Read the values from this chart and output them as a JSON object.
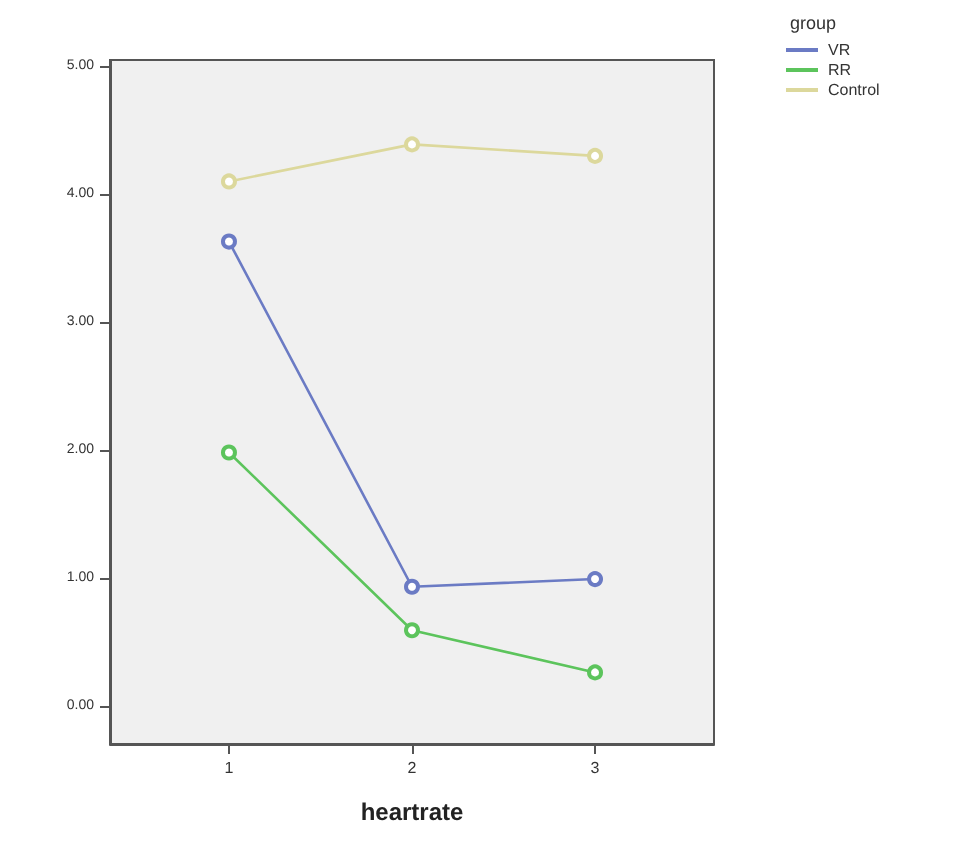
{
  "chart_data": {
    "type": "line",
    "xlabel": "heartrate",
    "legend_title": "group",
    "legend": "top right",
    "marker": "circle",
    "line_style": "solid",
    "grid": false,
    "x": [
      1,
      2,
      3
    ],
    "xlim": [
      0.35,
      3.65
    ],
    "xticks": [
      1,
      2,
      3
    ],
    "ylim": [
      -0.3,
      5.05
    ],
    "yticks": [
      {
        "value": 0,
        "label": "0.00"
      },
      {
        "value": 1,
        "label": "1.00"
      },
      {
        "value": 2,
        "label": "2.00"
      },
      {
        "value": 3,
        "label": "3.00"
      },
      {
        "value": 4,
        "label": "4.00"
      },
      {
        "value": 5,
        "label": "5.00"
      }
    ],
    "series": [
      {
        "name": "VR",
        "color": "#6b7bc4",
        "values": [
          3.63,
          0.93,
          0.99
        ]
      },
      {
        "name": "RR",
        "color": "#5cc45c",
        "values": [
          1.98,
          0.59,
          0.26
        ]
      },
      {
        "name": "Control",
        "color": "#dcd89c",
        "values": [
          4.1,
          4.39,
          4.3
        ]
      }
    ]
  }
}
